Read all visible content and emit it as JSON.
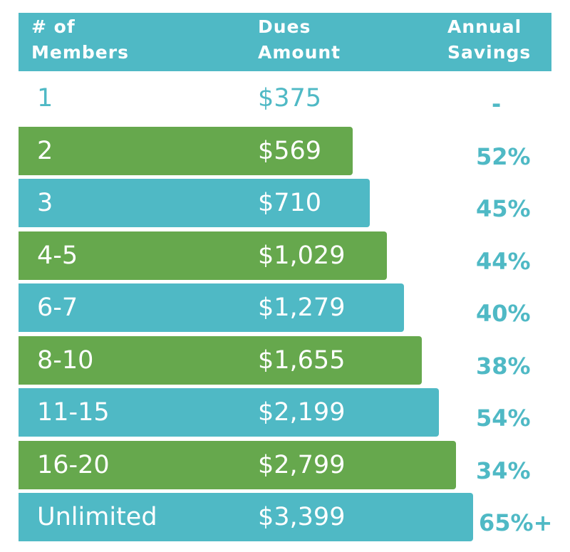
{
  "header": {
    "members_label": "# of\nMembers",
    "dues_label": "Dues\nAmount",
    "savings_label": "Annual\nSavings"
  },
  "colors": {
    "teal": "#4fb9c5",
    "green": "#66a84d",
    "white": "#ffffff"
  },
  "chart_data": {
    "type": "table",
    "columns": [
      "# of Members",
      "Dues Amount",
      "Annual Savings"
    ],
    "rows": [
      {
        "members": "1",
        "dues": "$375",
        "dues_value": 375,
        "savings": "-",
        "bar_color": "none"
      },
      {
        "members": "2",
        "dues": "$569",
        "dues_value": 569,
        "savings": "52%",
        "bar_color": "green"
      },
      {
        "members": "3",
        "dues": "$710",
        "dues_value": 710,
        "savings": "45%",
        "bar_color": "teal"
      },
      {
        "members": "4-5",
        "dues": "$1,029",
        "dues_value": 1029,
        "savings": "44%",
        "bar_color": "green"
      },
      {
        "members": "6-7",
        "dues": "$1,279",
        "dues_value": 1279,
        "savings": "40%",
        "bar_color": "teal"
      },
      {
        "members": "8-10",
        "dues": "$1,655",
        "dues_value": 1655,
        "savings": "38%",
        "bar_color": "green"
      },
      {
        "members": "11-15",
        "dues": "$2,199",
        "dues_value": 2199,
        "savings": "54%",
        "bar_color": "teal"
      },
      {
        "members": "16-20",
        "dues": "$2,799",
        "dues_value": 2799,
        "savings": "34%",
        "bar_color": "green"
      },
      {
        "members": "Unlimited",
        "dues": "$3,399",
        "dues_value": 3399,
        "savings": "65%+",
        "bar_color": "teal"
      }
    ]
  }
}
